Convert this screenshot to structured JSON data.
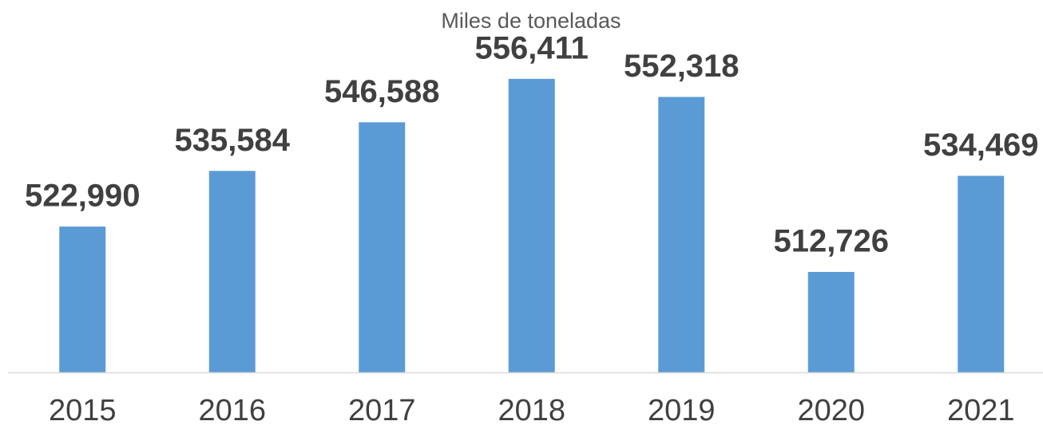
{
  "chart_data": {
    "type": "bar",
    "title": "Miles de toneladas",
    "categories": [
      "2015",
      "2016",
      "2017",
      "2018",
      "2019",
      "2020",
      "2021"
    ],
    "values": [
      522990,
      535584,
      546588,
      556411,
      552318,
      512726,
      534469
    ],
    "value_labels": [
      "522,990",
      "535,584",
      "546,588",
      "556,411",
      "552,318",
      "512,726",
      "534,469"
    ],
    "color": "#5b9bd5",
    "ylim": [
      490000,
      560000
    ]
  }
}
